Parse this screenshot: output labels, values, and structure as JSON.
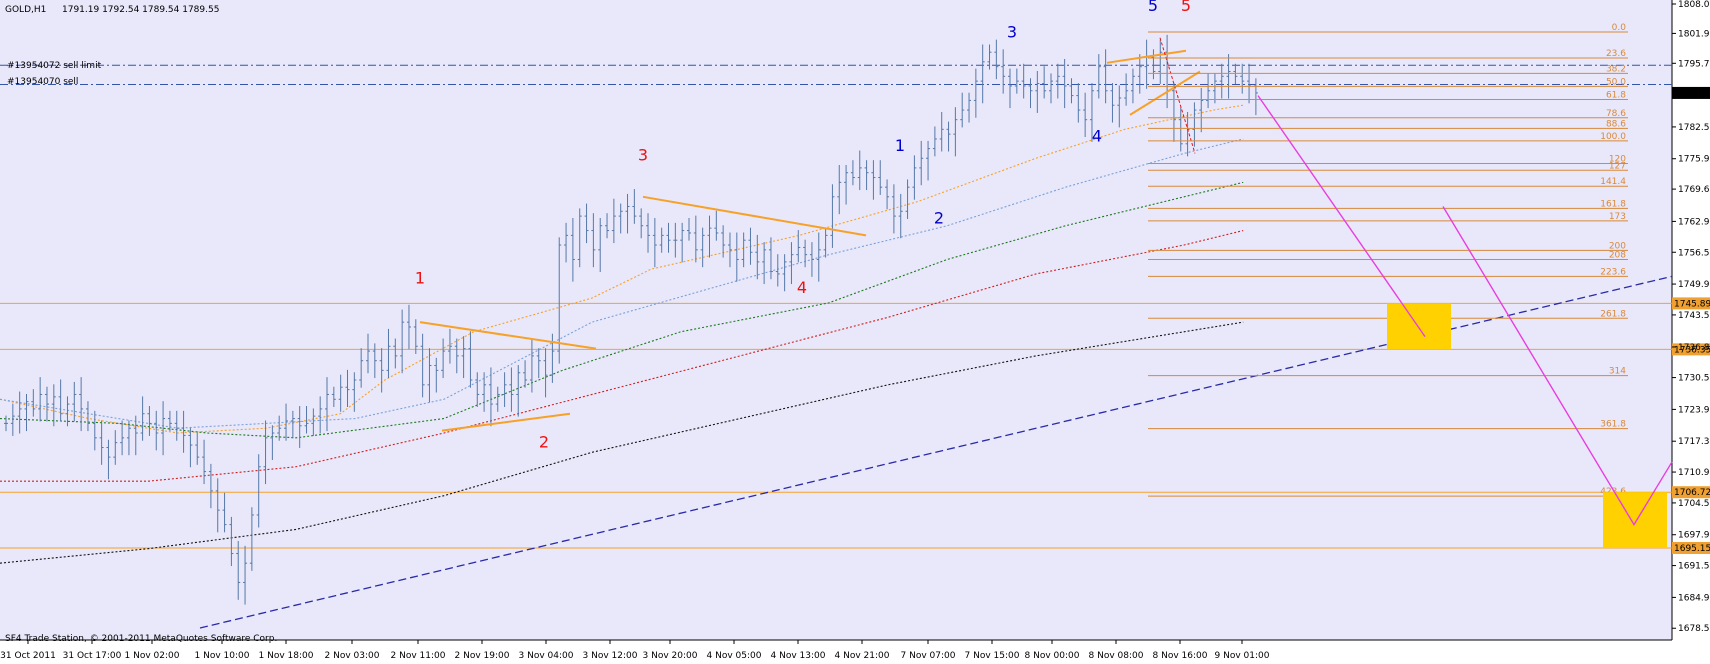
{
  "header": {
    "symbol": "GOLD,H1",
    "ohlc": "1791.19 1792.54 1789.54 1789.55"
  },
  "orders": {
    "sell_limit": "#13954072 sell limit",
    "sell": "#13954070 sell"
  },
  "footer": {
    "copyright": "SF4 Trade Station, © 2001-2011 MetaQuotes Software Corp."
  },
  "colors": {
    "background": "#e8e8fa",
    "axis_bg": "#ffffff",
    "candle": "#5578a8",
    "orange": "#f7a128",
    "fib": "#d9893a",
    "blue_wave": "#0000cc",
    "red_wave": "#ee1111",
    "trend": "#2a2aa8",
    "magenta": "#e83ee0",
    "target": "#ffd100",
    "price_tag": "#f0a030",
    "current_tag": "#000000"
  },
  "chart_data": {
    "type": "candlestick",
    "symbol": "GOLD",
    "timeframe": "H1",
    "y_axis": {
      "min": 1678.55,
      "max": 1808.0,
      "ticks": [
        1808.0,
        1801.9,
        1795.7,
        1789.55,
        1782.5,
        1775.9,
        1769.6,
        1762.9,
        1756.5,
        1749.9,
        1743.5,
        1736.85,
        1730.5,
        1723.9,
        1717.3,
        1710.9,
        1704.5,
        1697.9,
        1691.5,
        1684.9,
        1678.5
      ]
    },
    "x_axis": {
      "ticks": [
        "31 Oct 2011",
        "31 Oct 17:00",
        "1 Nov 02:00",
        "1 Nov 10:00",
        "1 Nov 18:00",
        "2 Nov 03:00",
        "2 Nov 11:00",
        "2 Nov 19:00",
        "3 Nov 04:00",
        "3 Nov 12:00",
        "3 Nov 20:00",
        "4 Nov 05:00",
        "4 Nov 13:00",
        "4 Nov 21:00",
        "7 Nov 07:00",
        "7 Nov 15:00",
        "8 Nov 00:00",
        "8 Nov 08:00",
        "8 Nov 16:00",
        "9 Nov 01:00"
      ]
    },
    "closes": [
      1721.0,
      1722.5,
      1724.0,
      1725.5,
      1724.0,
      1727.0,
      1725.0,
      1726.5,
      1723.0,
      1725.0,
      1727.0,
      1724.0,
      1721.0,
      1718.0,
      1716.0,
      1714.0,
      1717.0,
      1718.0,
      1720.0,
      1719.0,
      1723.0,
      1721.0,
      1719.0,
      1722.0,
      1721.0,
      1720.0,
      1718.5,
      1716.5,
      1714.0,
      1711.0,
      1707.0,
      1703.0,
      1700.0,
      1694.0,
      1688.0,
      1692.0,
      1702.0,
      1712.0,
      1718.0,
      1719.0,
      1720.0,
      1721.5,
      1722.0,
      1720.5,
      1721.0,
      1722.5,
      1724.0,
      1727.0,
      1726.0,
      1728.5,
      1728.0,
      1730.0,
      1734.0,
      1736.0,
      1734.0,
      1732.0,
      1737.0,
      1735.0,
      1742.0,
      1741.0,
      1737.0,
      1729.0,
      1733.0,
      1732.0,
      1736.0,
      1737.0,
      1735.0,
      1736.5,
      1730.0,
      1727.0,
      1729.0,
      1725.0,
      1727.0,
      1729.0,
      1727.0,
      1731.5,
      1730.0,
      1735.0,
      1734.0,
      1731.0,
      1736.0,
      1758.0,
      1760.0,
      1755.0,
      1764.0,
      1761.0,
      1757.0,
      1762.0,
      1761.0,
      1764.0,
      1765.0,
      1766.0,
      1764.0,
      1762.0,
      1760.0,
      1758.0,
      1760.0,
      1759.0,
      1759.0,
      1761.0,
      1760.5,
      1757.0,
      1760.0,
      1761.5,
      1760.5,
      1758.0,
      1757.0,
      1755.0,
      1759.0,
      1756.5,
      1754.5,
      1757.0,
      1752.5,
      1752.0,
      1754.5,
      1756.0,
      1757.5,
      1756.0,
      1755.0,
      1757.0,
      1760.0,
      1768.0,
      1771.0,
      1773.0,
      1772.0,
      1774.0,
      1773.0,
      1772.0,
      1770.0,
      1768.0,
      1764.0,
      1765.0,
      1770.0,
      1774.0,
      1776.0,
      1778.0,
      1780.0,
      1782.0,
      1781.0,
      1784.0,
      1786.0,
      1788.0,
      1792.0,
      1796.0,
      1798.0,
      1795.0,
      1793.0,
      1791.0,
      1792.0,
      1791.0,
      1790.0,
      1791.5,
      1790.0,
      1792.0,
      1793.0,
      1791.0,
      1789.0,
      1786.0,
      1784.0,
      1790.0,
      1795.0,
      1790.0,
      1787.0,
      1788.5,
      1790.0,
      1793.0,
      1795.0,
      1797.0,
      1794.0,
      1798.0,
      1790.0,
      1784.0,
      1779.0,
      1782.0,
      1786.0,
      1788.0,
      1790.0,
      1792.0,
      1793.0,
      1794.0,
      1793.0,
      1792.0,
      1791.0,
      1789.55
    ],
    "moving_averages": [
      {
        "color": "#f7a128",
        "points": [
          [
            0,
            1726
          ],
          [
            60,
            1722
          ],
          [
            120,
            1719
          ],
          [
            180,
            1720
          ],
          [
            230,
            1723
          ],
          [
            260,
            1730
          ],
          [
            320,
            1740
          ],
          [
            400,
            1747
          ],
          [
            440,
            1753
          ],
          [
            540,
            1760
          ],
          [
            620,
            1767
          ],
          [
            700,
            1776
          ],
          [
            760,
            1782
          ],
          [
            820,
            1786
          ],
          [
            840,
            1787
          ]
        ]
      },
      {
        "color": "#7aa1da",
        "points": [
          [
            0,
            1726
          ],
          [
            60,
            1723
          ],
          [
            120,
            1720
          ],
          [
            180,
            1721
          ],
          [
            240,
            1722
          ],
          [
            300,
            1726
          ],
          [
            400,
            1742
          ],
          [
            480,
            1749
          ],
          [
            560,
            1756
          ],
          [
            640,
            1762
          ],
          [
            720,
            1770
          ],
          [
            800,
            1777
          ],
          [
            840,
            1780
          ]
        ]
      },
      {
        "color": "#1e7a1e",
        "points": [
          [
            0,
            1722
          ],
          [
            80,
            1721
          ],
          [
            140,
            1719
          ],
          [
            200,
            1718
          ],
          [
            300,
            1722
          ],
          [
            380,
            1732
          ],
          [
            460,
            1740
          ],
          [
            560,
            1746
          ],
          [
            640,
            1755
          ],
          [
            720,
            1762
          ],
          [
            800,
            1768
          ],
          [
            840,
            1771
          ]
        ]
      },
      {
        "color": "#d02020",
        "points": [
          [
            0,
            1709
          ],
          [
            100,
            1709
          ],
          [
            200,
            1712
          ],
          [
            300,
            1719
          ],
          [
            400,
            1727
          ],
          [
            500,
            1735
          ],
          [
            600,
            1743
          ],
          [
            700,
            1752
          ],
          [
            800,
            1758
          ],
          [
            840,
            1761
          ]
        ]
      },
      {
        "color": "#111111",
        "points": [
          [
            0,
            1692
          ],
          [
            100,
            1695
          ],
          [
            200,
            1699
          ],
          [
            300,
            1706
          ],
          [
            400,
            1715
          ],
          [
            500,
            1722
          ],
          [
            600,
            1729
          ],
          [
            700,
            1735
          ],
          [
            800,
            1740
          ],
          [
            840,
            1742
          ]
        ]
      }
    ],
    "trendline": {
      "from": [
        1678.55,
        0
      ],
      "to": [
        1751.5,
        1.0
      ]
    },
    "triangles": [
      {
        "upper": [
          [
            1742.0,
            1736.5
          ]
        ],
        "lower": [
          [
            1720.0,
            1725.5
          ]
        ]
      }
    ],
    "fibonacci": {
      "levels": [
        {
          "label": "0.0",
          "price": 1802.2
        },
        {
          "label": "23.6",
          "price": 1796.8
        },
        {
          "label": "38.2",
          "price": 1793.6
        },
        {
          "label": "50.0",
          "price": 1790.9
        },
        {
          "label": "61.8",
          "price": 1788.2
        },
        {
          "label": "78.6",
          "price": 1784.4
        },
        {
          "label": "88.6",
          "price": 1782.2
        },
        {
          "label": "100.0",
          "price": 1779.6
        },
        {
          "label": "120",
          "price": 1774.9
        },
        {
          "label": "127",
          "price": 1773.5
        },
        {
          "label": "141.4",
          "price": 1770.2
        },
        {
          "label": "161.8",
          "price": 1765.6
        },
        {
          "label": "173",
          "price": 1763.0
        },
        {
          "label": "200",
          "price": 1756.9
        },
        {
          "label": "208",
          "price": 1755.0
        },
        {
          "label": "223.6",
          "price": 1751.5
        },
        {
          "label": "261.8",
          "price": 1742.8
        },
        {
          "label": "314",
          "price": 1730.9
        },
        {
          "label": "361.8",
          "price": 1719.9
        },
        {
          "label": "423.6",
          "price": 1705.9
        }
      ]
    },
    "horizontal_levels": [
      {
        "label": "1745.89",
        "price": 1745.89
      },
      {
        "label": "1736.35",
        "price": 1736.35
      },
      {
        "label": "1706.72",
        "price": 1706.72
      },
      {
        "label": "1695.15",
        "price": 1695.15
      }
    ],
    "current_price": "1789.55",
    "wave_labels": [
      {
        "text": "1",
        "color": "red",
        "price": 1750.0
      },
      {
        "text": "2",
        "color": "red",
        "price": 1716.0
      },
      {
        "text": "3",
        "color": "red",
        "price": 1775.5
      },
      {
        "text": "4",
        "color": "red",
        "price": 1748.0
      },
      {
        "text": "5",
        "color": "red",
        "price": 1806.5
      },
      {
        "text": "1",
        "color": "blue",
        "price": 1777.5
      },
      {
        "text": "2",
        "color": "blue",
        "price": 1762.5
      },
      {
        "text": "3",
        "color": "blue",
        "price": 1801.0
      },
      {
        "text": "4",
        "color": "blue",
        "price": 1779.5
      },
      {
        "text": "5",
        "color": "blue",
        "price": 1806.5
      }
    ],
    "projection": {
      "path1": [
        [
          1789.0,
          0
        ],
        [
          1738.0,
          1
        ]
      ],
      "path2": [
        [
          1766.0,
          0
        ],
        [
          1703.0,
          1
        ],
        [
          1713.0,
          2
        ]
      ]
    },
    "targets": [
      {
        "top": 1745.89,
        "bottom": 1736.35
      },
      {
        "top": 1706.72,
        "bottom": 1695.15
      }
    ]
  }
}
